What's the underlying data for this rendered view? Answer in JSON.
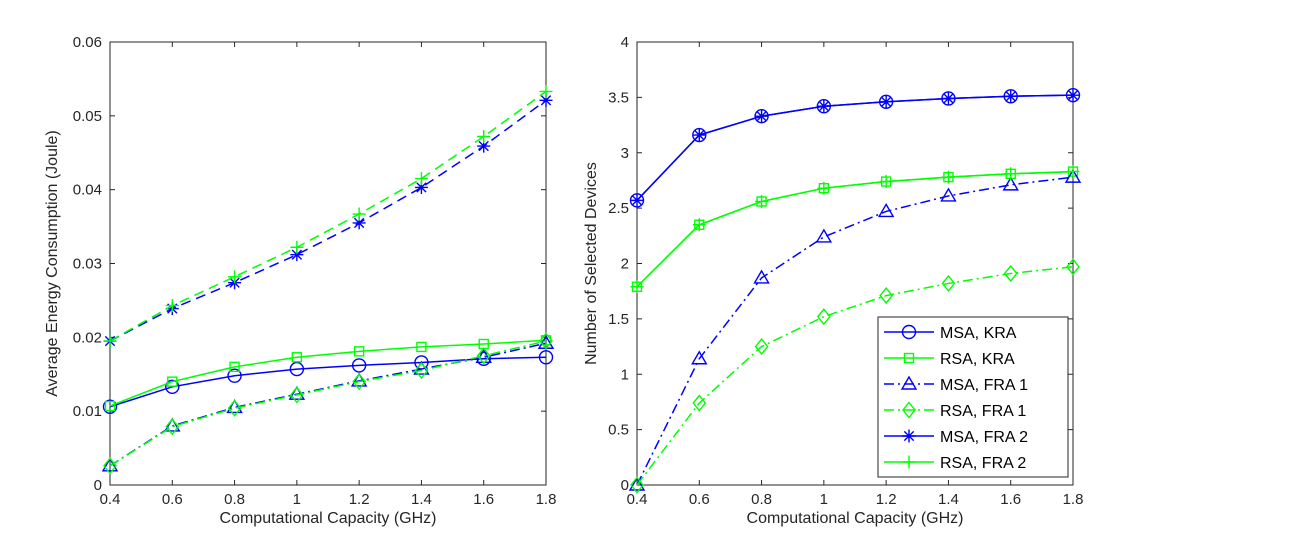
{
  "colors": {
    "blue": "#0000ff",
    "green": "#00ff00",
    "axis": "#262626",
    "background": "#ffffff"
  },
  "chart_data": [
    {
      "type": "line",
      "title": "",
      "xlabel": "Computational Capacity (GHz)",
      "ylabel": "Average Energy Consumption (Joule)",
      "xlim": [
        0.4,
        1.8
      ],
      "ylim": [
        0,
        0.06
      ],
      "xticks": [
        "0.4",
        "0.6",
        "0.8",
        "1",
        "1.2",
        "1.4",
        "1.6",
        "1.8"
      ],
      "yticks": [
        "0",
        "0.01",
        "0.02",
        "0.03",
        "0.04",
        "0.05",
        "0.06"
      ],
      "grid": false,
      "legend": "none",
      "x": [
        0.4,
        0.6,
        0.8,
        1.0,
        1.2,
        1.4,
        1.6,
        1.8
      ],
      "series": [
        {
          "name": "MSA, KRA",
          "color": "blue",
          "line": "solid",
          "marker": "circle",
          "values": [
            0.0106,
            0.0133,
            0.0148,
            0.0157,
            0.0162,
            0.0166,
            0.0171,
            0.0173
          ]
        },
        {
          "name": "RSA, KRA",
          "color": "green",
          "line": "solid",
          "marker": "square",
          "values": [
            0.0107,
            0.014,
            0.016,
            0.0173,
            0.0181,
            0.0187,
            0.0191,
            0.0196
          ]
        },
        {
          "name": "MSA, FRA 1",
          "color": "blue",
          "line": "dashdot",
          "marker": "triangle",
          "values": [
            0.0026,
            0.008,
            0.0105,
            0.0123,
            0.0141,
            0.0157,
            0.0173,
            0.0192
          ]
        },
        {
          "name": "RSA, FRA 1",
          "color": "green",
          "line": "dashdot",
          "marker": "diamond",
          "values": [
            0.0026,
            0.0079,
            0.0104,
            0.0122,
            0.014,
            0.0155,
            0.0175,
            0.0195
          ]
        },
        {
          "name": "MSA, FRA 2",
          "color": "blue",
          "line": "dashed",
          "marker": "asterisk",
          "values": [
            0.0195,
            0.0239,
            0.0274,
            0.0312,
            0.0355,
            0.0403,
            0.0459,
            0.0521
          ]
        },
        {
          "name": "RSA, FRA 2",
          "color": "green",
          "line": "dashed",
          "marker": "plus",
          "values": [
            0.0195,
            0.0243,
            0.0282,
            0.0322,
            0.0367,
            0.0415,
            0.0472,
            0.0533
          ]
        }
      ]
    },
    {
      "type": "line",
      "title": "",
      "xlabel": "Computational Capacity (GHz)",
      "ylabel": "Number of Selected Devices",
      "xlim": [
        0.4,
        1.8
      ],
      "ylim": [
        0,
        4
      ],
      "xticks": [
        "0.4",
        "0.6",
        "0.8",
        "1",
        "1.2",
        "1.4",
        "1.6",
        "1.8"
      ],
      "yticks": [
        "0",
        "0.5",
        "1",
        "1.5",
        "2",
        "2.5",
        "3",
        "3.5",
        "4"
      ],
      "grid": false,
      "legend": "bottom-right",
      "x": [
        0.4,
        0.6,
        0.8,
        1.0,
        1.2,
        1.4,
        1.6,
        1.8
      ],
      "series": [
        {
          "name": "MSA, KRA",
          "color": "blue",
          "line": "solid",
          "marker": "circle",
          "values": [
            2.57,
            3.16,
            3.33,
            3.42,
            3.46,
            3.49,
            3.51,
            3.52
          ]
        },
        {
          "name": "RSA, KRA",
          "color": "green",
          "line": "solid",
          "marker": "square",
          "values": [
            1.79,
            2.35,
            2.56,
            2.68,
            2.74,
            2.78,
            2.81,
            2.83
          ]
        },
        {
          "name": "MSA, FRA 1",
          "color": "blue",
          "line": "dashdot",
          "marker": "triangle",
          "values": [
            0.0,
            1.14,
            1.87,
            2.24,
            2.47,
            2.61,
            2.71,
            2.78
          ]
        },
        {
          "name": "RSA, FRA 1",
          "color": "green",
          "line": "dashdot",
          "marker": "diamond",
          "values": [
            0.0,
            0.74,
            1.25,
            1.52,
            1.71,
            1.82,
            1.91,
            1.97
          ]
        },
        {
          "name": "MSA, FRA 2",
          "color": "blue",
          "line": "solid",
          "marker": "asterisk",
          "values": [
            2.57,
            3.16,
            3.33,
            3.42,
            3.46,
            3.49,
            3.51,
            3.52
          ]
        },
        {
          "name": "RSA, FRA 2",
          "color": "green",
          "line": "solid",
          "marker": "plus",
          "values": [
            1.79,
            2.35,
            2.56,
            2.68,
            2.74,
            2.78,
            2.81,
            2.83
          ]
        }
      ]
    }
  ]
}
